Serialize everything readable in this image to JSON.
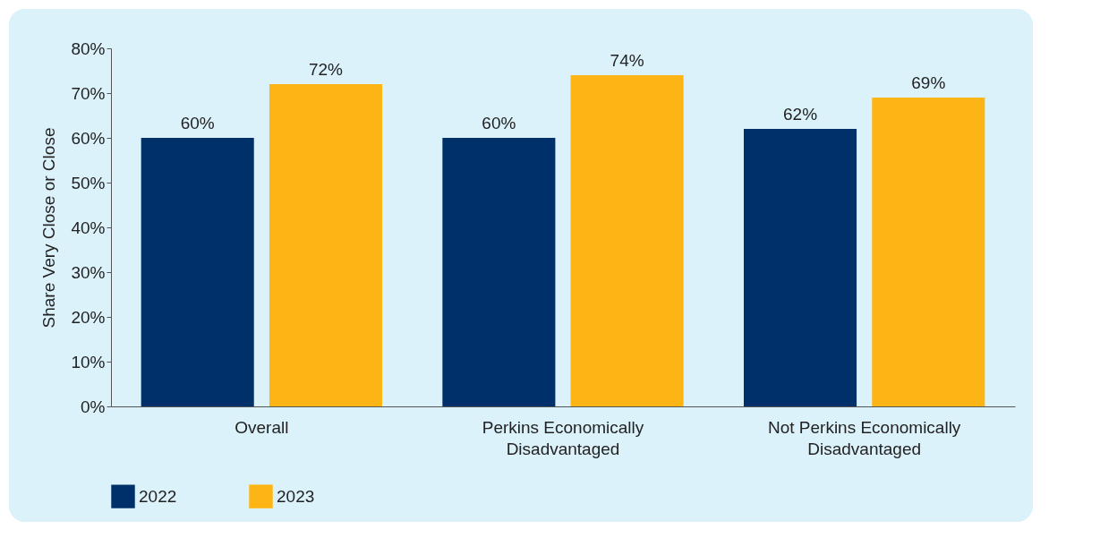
{
  "chart_data": {
    "type": "bar",
    "ylabel": "Share Very Close or Close",
    "categories": [
      "Overall",
      "Perkins Economically Disadvantaged",
      "Not Perkins Economically Disadvantaged"
    ],
    "series": [
      {
        "name": "2022",
        "color": "#003069",
        "values": [
          60,
          60,
          62
        ],
        "value_labels": [
          "60%",
          "60%",
          "62%"
        ]
      },
      {
        "name": "2023",
        "color": "#fdb515",
        "values": [
          72,
          74,
          69
        ],
        "value_labels": [
          "72%",
          "74%",
          "69%"
        ]
      }
    ],
    "ylim": [
      0,
      80
    ],
    "yticks": [
      {
        "value": 0,
        "label": "0%"
      },
      {
        "value": 10,
        "label": "10%"
      },
      {
        "value": 20,
        "label": "20%"
      },
      {
        "value": 30,
        "label": "30%"
      },
      {
        "value": 40,
        "label": "40%"
      },
      {
        "value": 50,
        "label": "50%"
      },
      {
        "value": 60,
        "label": "60%"
      },
      {
        "value": 70,
        "label": "70%"
      },
      {
        "value": 80,
        "label": "80%"
      }
    ],
    "grid": false,
    "legend": "bottom"
  }
}
